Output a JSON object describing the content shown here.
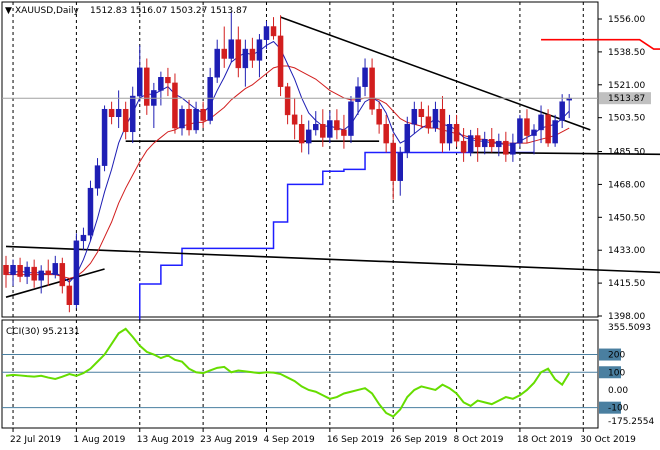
{
  "header": {
    "symbol": "XAUUSD,Daily",
    "ohlc": "1512.83 1516.07 1503.27 1513.87"
  },
  "colors": {
    "bull": "#1e1eb4",
    "bear": "#d21e1e",
    "fast_ma": "#1e1eb4",
    "slow_ma": "#d21e1e",
    "trend": "#000000",
    "cci": "#66dd00",
    "level": "#4a7fa0",
    "price_label_bg": "#c0c0c0"
  },
  "chart_data": [
    {
      "type": "candlestick",
      "title": "XAUUSD,Daily",
      "ylim": [
        1398,
        1564
      ],
      "y_ticks": [
        "1556.00",
        "1538.50",
        "1521.00",
        "1503.50",
        "1485.50",
        "1468.00",
        "1450.50",
        "1433.00",
        "1415.50",
        "1398.00"
      ],
      "x_ticks": [
        "22 Jul 2019",
        "1 Aug 2019",
        "13 Aug 2019",
        "23 Aug 2019",
        "4 Sep 2019",
        "16 Sep 2019",
        "26 Sep 2019",
        "8 Oct 2019",
        "18 Oct 2019",
        "30 Oct 2019"
      ],
      "last_price": "1513.87",
      "candles": [
        [
          1425,
          1430,
          1413,
          1420
        ],
        [
          1420,
          1428,
          1414,
          1425
        ],
        [
          1425,
          1429,
          1416,
          1419
        ],
        [
          1419,
          1427,
          1415,
          1424
        ],
        [
          1424,
          1428,
          1413,
          1417
        ],
        [
          1417,
          1425,
          1410,
          1422
        ],
        [
          1422,
          1428,
          1414,
          1420
        ],
        [
          1420,
          1430,
          1418,
          1426
        ],
        [
          1426,
          1429,
          1410,
          1414
        ],
        [
          1414,
          1418,
          1400,
          1404
        ],
        [
          1404,
          1442,
          1402,
          1438
        ],
        [
          1438,
          1445,
          1433,
          1441
        ],
        [
          1441,
          1470,
          1438,
          1466
        ],
        [
          1466,
          1482,
          1462,
          1478
        ],
        [
          1478,
          1510,
          1475,
          1508
        ],
        [
          1508,
          1512,
          1500,
          1504
        ],
        [
          1504,
          1518,
          1498,
          1508
        ],
        [
          1508,
          1512,
          1492,
          1496
        ],
        [
          1496,
          1520,
          1490,
          1515
        ],
        [
          1515,
          1542,
          1512,
          1530
        ],
        [
          1530,
          1535,
          1505,
          1510
        ],
        [
          1510,
          1522,
          1498,
          1518
        ],
        [
          1518,
          1528,
          1510,
          1525
        ],
        [
          1525,
          1530,
          1515,
          1522
        ],
        [
          1522,
          1527,
          1495,
          1498
        ],
        [
          1498,
          1510,
          1494,
          1508
        ],
        [
          1508,
          1513,
          1494,
          1497
        ],
        [
          1497,
          1512,
          1495,
          1508
        ],
        [
          1508,
          1512,
          1498,
          1502
        ],
        [
          1502,
          1530,
          1500,
          1525
        ],
        [
          1525,
          1545,
          1522,
          1540
        ],
        [
          1540,
          1552,
          1530,
          1535
        ],
        [
          1535,
          1560,
          1533,
          1545
        ],
        [
          1545,
          1552,
          1525,
          1530
        ],
        [
          1530,
          1545,
          1520,
          1540
        ],
        [
          1540,
          1546,
          1530,
          1534
        ],
        [
          1534,
          1548,
          1525,
          1545
        ],
        [
          1545,
          1555,
          1540,
          1552
        ],
        [
          1552,
          1557,
          1545,
          1547
        ],
        [
          1547,
          1558,
          1515,
          1520
        ],
        [
          1520,
          1522,
          1500,
          1505
        ],
        [
          1505,
          1514,
          1492,
          1500
        ],
        [
          1500,
          1505,
          1485,
          1490
        ],
        [
          1490,
          1502,
          1484,
          1497
        ],
        [
          1497,
          1507,
          1494,
          1500
        ],
        [
          1500,
          1508,
          1488,
          1493
        ],
        [
          1493,
          1507,
          1490,
          1502
        ],
        [
          1502,
          1508,
          1492,
          1497
        ],
        [
          1497,
          1505,
          1487,
          1494
        ],
        [
          1494,
          1515,
          1490,
          1512
        ],
        [
          1512,
          1525,
          1505,
          1520
        ],
        [
          1520,
          1535,
          1515,
          1530
        ],
        [
          1530,
          1535,
          1505,
          1508
        ],
        [
          1508,
          1512,
          1495,
          1500
        ],
        [
          1500,
          1505,
          1485,
          1490
        ],
        [
          1490,
          1495,
          1460,
          1470
        ],
        [
          1470,
          1488,
          1462,
          1485
        ],
        [
          1485,
          1504,
          1482,
          1500
        ],
        [
          1500,
          1512,
          1495,
          1508
        ],
        [
          1508,
          1512,
          1498,
          1504
        ],
        [
          1504,
          1510,
          1495,
          1498
        ],
        [
          1498,
          1512,
          1496,
          1508
        ],
        [
          1508,
          1515,
          1485,
          1490
        ],
        [
          1490,
          1505,
          1486,
          1500
        ],
        [
          1500,
          1505,
          1488,
          1491
        ],
        [
          1491,
          1498,
          1480,
          1485
        ],
        [
          1485,
          1497,
          1483,
          1494
        ],
        [
          1494,
          1498,
          1480,
          1488
        ],
        [
          1488,
          1496,
          1484,
          1492
        ],
        [
          1492,
          1498,
          1485,
          1488
        ],
        [
          1488,
          1495,
          1483,
          1491
        ],
        [
          1491,
          1496,
          1480,
          1484
        ],
        [
          1484,
          1495,
          1480,
          1490
        ],
        [
          1490,
          1505,
          1488,
          1503
        ],
        [
          1503,
          1508,
          1490,
          1494
        ],
        [
          1494,
          1500,
          1484,
          1497
        ],
        [
          1497,
          1510,
          1490,
          1505
        ],
        [
          1505,
          1508,
          1488,
          1490
        ],
        [
          1490,
          1505,
          1488,
          1502
        ],
        [
          1502,
          1516,
          1498,
          1512
        ],
        [
          1512.83,
          1516.07,
          1503.27,
          1513.87
        ]
      ],
      "fast_ma": [
        1421,
        1421,
        1422,
        1421,
        1421,
        1421,
        1420,
        1421,
        1419,
        1416,
        1420,
        1428,
        1438,
        1450,
        1464,
        1476,
        1490,
        1499,
        1506,
        1514,
        1516,
        1516,
        1518,
        1520,
        1516,
        1514,
        1511,
        1508,
        1506,
        1510,
        1518,
        1525,
        1533,
        1536,
        1538,
        1537,
        1539,
        1542,
        1544,
        1540,
        1532,
        1524,
        1514,
        1506,
        1502,
        1499,
        1499,
        1498,
        1497,
        1500,
        1506,
        1512,
        1514,
        1512,
        1506,
        1496,
        1490,
        1492,
        1495,
        1498,
        1500,
        1503,
        1500,
        1499,
        1497,
        1493,
        1492,
        1491,
        1491,
        1490,
        1490,
        1489,
        1489,
        1491,
        1493,
        1495,
        1498,
        1499,
        1500,
        1503,
        1507
      ],
      "slow_ma": [
        1420,
        1420,
        1420,
        1420,
        1420,
        1420,
        1420,
        1420,
        1419,
        1418,
        1419,
        1422,
        1426,
        1432,
        1440,
        1448,
        1458,
        1466,
        1473,
        1480,
        1486,
        1490,
        1493,
        1496,
        1497,
        1499,
        1500,
        1501,
        1501,
        1503,
        1506,
        1509,
        1513,
        1516,
        1519,
        1521,
        1524,
        1527,
        1530,
        1531,
        1531,
        1530,
        1528,
        1526,
        1524,
        1521,
        1518,
        1516,
        1514,
        1513,
        1513,
        1514,
        1514,
        1513,
        1511,
        1507,
        1503,
        1501,
        1500,
        1499,
        1498,
        1498,
        1497,
        1496,
        1495,
        1494,
        1493,
        1492,
        1492,
        1491,
        1490,
        1490,
        1490,
        1490,
        1490,
        1491,
        1492,
        1493,
        1494,
        1496,
        1498
      ],
      "kijun": [
        [
          0,
          1395
        ],
        [
          18,
          1395
        ],
        [
          19,
          1415
        ],
        [
          21,
          1415
        ],
        [
          22,
          1425
        ],
        [
          24,
          1425
        ],
        [
          25,
          1434
        ],
        [
          37,
          1434
        ],
        [
          38,
          1448
        ],
        [
          39,
          1448
        ],
        [
          40,
          1468
        ],
        [
          44,
          1468
        ],
        [
          45,
          1475
        ],
        [
          47,
          1475
        ],
        [
          48,
          1476
        ],
        [
          50,
          1476
        ],
        [
          51,
          1485
        ],
        [
          75,
          1485
        ]
      ],
      "resistance_line": [
        [
          76,
          1545
        ],
        [
          90,
          1545
        ],
        [
          92,
          1540
        ],
        [
          94,
          1540
        ]
      ],
      "trendlines": [
        [
          [
            0,
            1435
          ],
          [
            94,
            1421
          ]
        ],
        [
          [
            0,
            1408
          ],
          [
            14,
            1423
          ]
        ],
        [
          [
            39,
            1557
          ],
          [
            83,
            1497
          ]
        ],
        [
          [
            17,
            1491
          ],
          [
            53,
            1491
          ]
        ],
        [
          [
            66,
            1485
          ],
          [
            94,
            1484
          ]
        ]
      ]
    },
    {
      "type": "line",
      "title": "CCI(30) 95.2131",
      "ylim": [
        -175.2554,
        355.5093
      ],
      "y_ticks": [
        "355.5093",
        "200",
        "100",
        "0.00",
        "-100",
        "-175.2554"
      ],
      "levels": [
        200,
        100,
        -100
      ],
      "values": [
        80,
        85,
        82,
        78,
        75,
        80,
        70,
        62,
        75,
        90,
        80,
        95,
        120,
        160,
        200,
        260,
        320,
        345,
        300,
        250,
        215,
        200,
        180,
        195,
        170,
        160,
        120,
        100,
        95,
        110,
        125,
        130,
        100,
        110,
        105,
        100,
        95,
        100,
        98,
        90,
        70,
        50,
        20,
        0,
        -10,
        -30,
        -50,
        -40,
        -20,
        -10,
        0,
        10,
        -20,
        -80,
        -130,
        -150,
        -110,
        -40,
        0,
        20,
        10,
        0,
        30,
        10,
        -20,
        -70,
        -90,
        -60,
        -70,
        -80,
        -60,
        -40,
        -50,
        -30,
        0,
        40,
        100,
        120,
        60,
        30,
        95.2131
      ]
    }
  ]
}
